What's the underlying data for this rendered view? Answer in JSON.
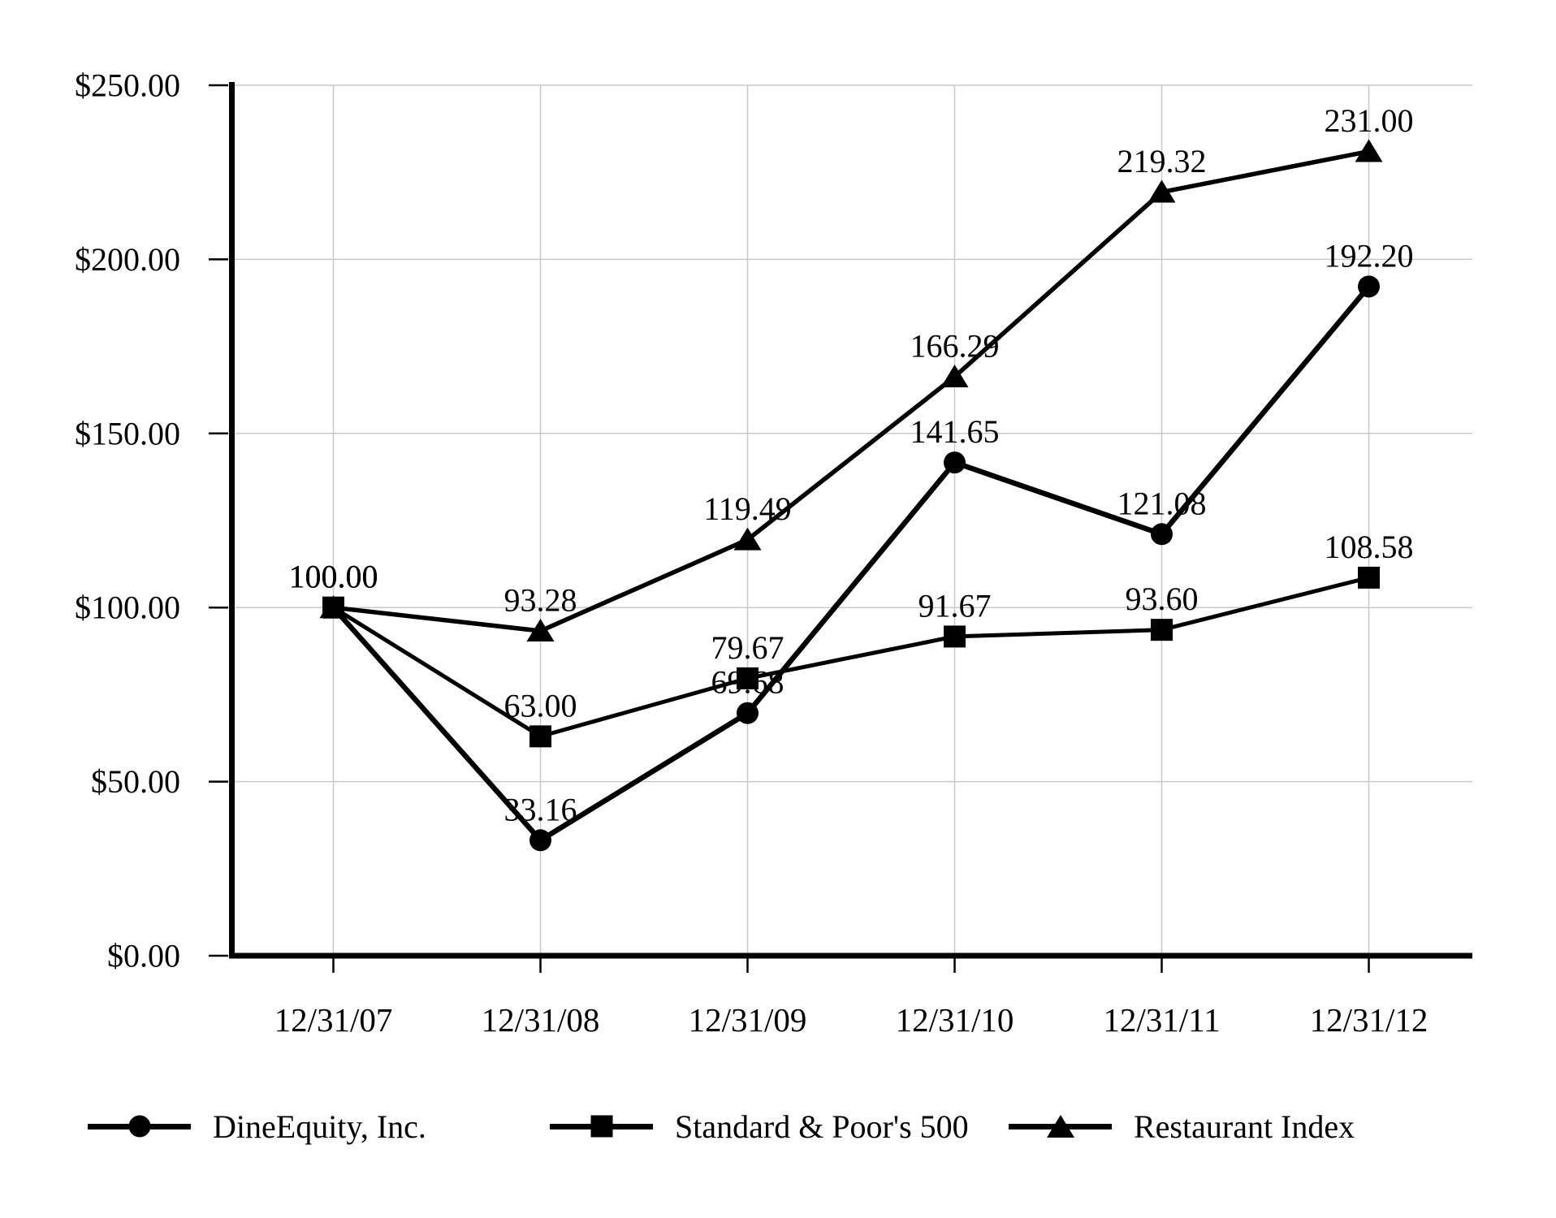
{
  "chart_data": {
    "type": "line",
    "x_labels": [
      "12/31/07",
      "12/31/08",
      "12/31/09",
      "12/31/10",
      "12/31/11",
      "12/31/12"
    ],
    "series": [
      {
        "name": "DineEquity, Inc.",
        "marker": "circle",
        "values": [
          100.0,
          33.16,
          69.68,
          141.65,
          121.08,
          192.2
        ]
      },
      {
        "name": "Standard & Poor's 500",
        "marker": "square",
        "values": [
          100.0,
          63.0,
          79.67,
          91.67,
          93.6,
          108.58
        ]
      },
      {
        "name": "Restaurant Index",
        "marker": "triangle",
        "values": [
          100.0,
          93.28,
          119.49,
          166.29,
          219.32,
          231.0
        ]
      }
    ],
    "y_tick_values": [
      0,
      50,
      100,
      150,
      200,
      250
    ],
    "y_tick_labels": [
      "$0.00",
      "$50.00",
      "$100.00",
      "$150.00",
      "$200.00",
      "$250.00"
    ],
    "ylim": [
      0,
      250
    ],
    "grid": true,
    "value_labels_shown": true,
    "value_label_format": "0.00",
    "legend_position": "bottom",
    "colors": {
      "series": "#000000",
      "grid": "#c8c8c8",
      "text": "#000000",
      "background": "#ffffff"
    }
  }
}
